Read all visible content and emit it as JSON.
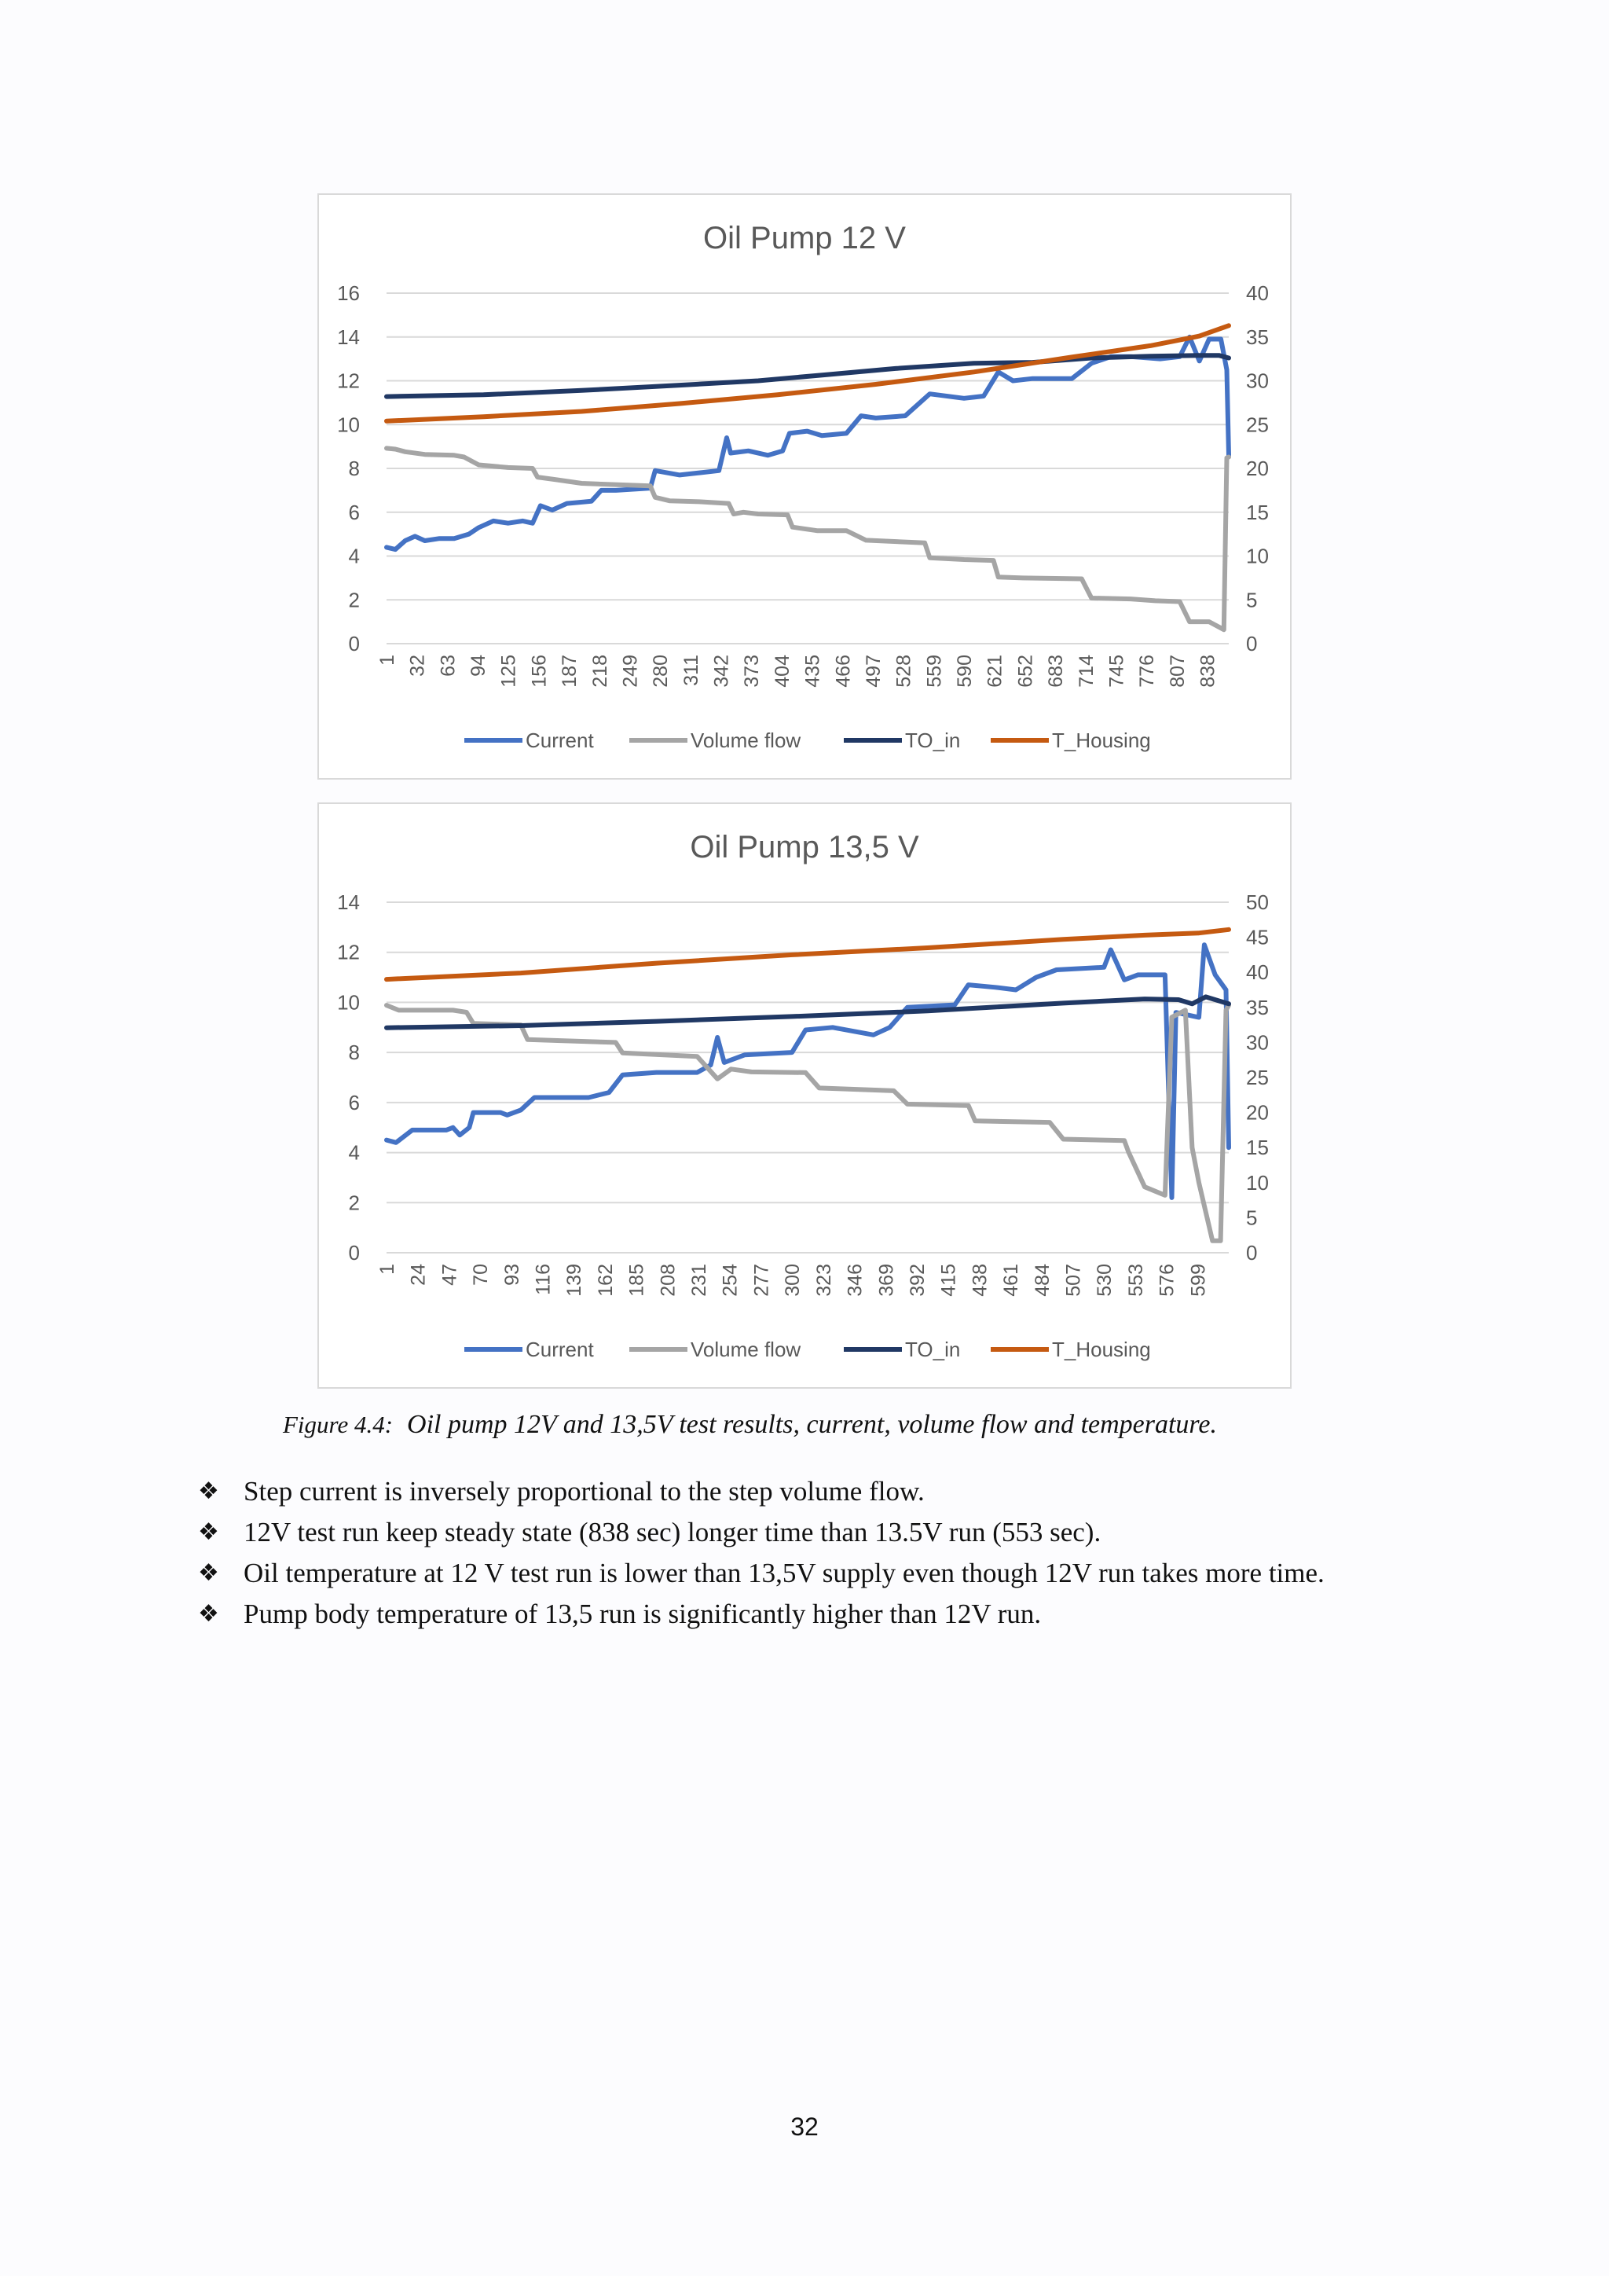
{
  "chart_data": [
    {
      "type": "line",
      "title": "Oil Pump 12 V",
      "x_ticks": [
        "1",
        "32",
        "63",
        "94",
        "125",
        "156",
        "187",
        "218",
        "249",
        "280",
        "311",
        "342",
        "373",
        "404",
        "435",
        "466",
        "497",
        "528",
        "559",
        "590",
        "621",
        "652",
        "683",
        "714",
        "745",
        "776",
        "807",
        "838"
      ],
      "xlim": [
        1,
        860
      ],
      "y_left": {
        "ticks": [
          "0",
          "2",
          "4",
          "6",
          "8",
          "10",
          "12",
          "14",
          "16"
        ],
        "ylim": [
          0,
          16
        ]
      },
      "y_right": {
        "ticks": [
          "0",
          "5",
          "10",
          "15",
          "20",
          "25",
          "30",
          "35",
          "40"
        ],
        "ylim": [
          0,
          40
        ]
      },
      "grid": true,
      "legend_position": "bottom",
      "series": [
        {
          "name": "Current",
          "color": "#4472c4",
          "axis": "left",
          "points": [
            [
              1,
              4.4
            ],
            [
              10,
              4.3
            ],
            [
              20,
              4.7
            ],
            [
              30,
              4.9
            ],
            [
              40,
              4.7
            ],
            [
              55,
              4.8
            ],
            [
              70,
              4.8
            ],
            [
              85,
              5.0
            ],
            [
              95,
              5.3
            ],
            [
              110,
              5.6
            ],
            [
              125,
              5.5
            ],
            [
              140,
              5.6
            ],
            [
              150,
              5.5
            ],
            [
              158,
              6.3
            ],
            [
              170,
              6.1
            ],
            [
              185,
              6.4
            ],
            [
              210,
              6.5
            ],
            [
              220,
              7.0
            ],
            [
              235,
              7.0
            ],
            [
              270,
              7.1
            ],
            [
              275,
              7.9
            ],
            [
              300,
              7.7
            ],
            [
              320,
              7.8
            ],
            [
              340,
              7.9
            ],
            [
              348,
              9.4
            ],
            [
              352,
              8.7
            ],
            [
              370,
              8.8
            ],
            [
              390,
              8.6
            ],
            [
              405,
              8.8
            ],
            [
              412,
              9.6
            ],
            [
              430,
              9.7
            ],
            [
              445,
              9.5
            ],
            [
              470,
              9.6
            ],
            [
              485,
              10.4
            ],
            [
              500,
              10.3
            ],
            [
              530,
              10.4
            ],
            [
              555,
              11.4
            ],
            [
              590,
              11.2
            ],
            [
              610,
              11.3
            ],
            [
              625,
              12.4
            ],
            [
              640,
              12.0
            ],
            [
              660,
              12.1
            ],
            [
              700,
              12.1
            ],
            [
              720,
              12.8
            ],
            [
              740,
              13.1
            ],
            [
              760,
              13.1
            ],
            [
              790,
              13.0
            ],
            [
              810,
              13.1
            ],
            [
              820,
              14.0
            ],
            [
              830,
              12.9
            ],
            [
              840,
              13.9
            ],
            [
              852,
              13.9
            ],
            [
              858,
              12.5
            ],
            [
              860,
              8.6
            ]
          ]
        },
        {
          "name": "Volume flow",
          "color": "#a5a5a5",
          "axis": "right",
          "points": [
            [
              1,
              22.3
            ],
            [
              10,
              22.2
            ],
            [
              20,
              21.9
            ],
            [
              40,
              21.6
            ],
            [
              70,
              21.5
            ],
            [
              80,
              21.3
            ],
            [
              95,
              20.4
            ],
            [
              125,
              20.1
            ],
            [
              150,
              20.0
            ],
            [
              155,
              19.0
            ],
            [
              175,
              18.7
            ],
            [
              200,
              18.3
            ],
            [
              270,
              18.0
            ],
            [
              275,
              16.7
            ],
            [
              290,
              16.3
            ],
            [
              320,
              16.2
            ],
            [
              350,
              16.0
            ],
            [
              355,
              14.8
            ],
            [
              365,
              15.0
            ],
            [
              380,
              14.8
            ],
            [
              410,
              14.7
            ],
            [
              415,
              13.3
            ],
            [
              440,
              12.9
            ],
            [
              470,
              12.9
            ],
            [
              490,
              11.8
            ],
            [
              510,
              11.7
            ],
            [
              550,
              11.5
            ],
            [
              555,
              9.8
            ],
            [
              590,
              9.6
            ],
            [
              620,
              9.5
            ],
            [
              625,
              7.6
            ],
            [
              650,
              7.5
            ],
            [
              710,
              7.4
            ],
            [
              720,
              5.2
            ],
            [
              760,
              5.1
            ],
            [
              785,
              4.9
            ],
            [
              810,
              4.8
            ],
            [
              820,
              2.5
            ],
            [
              840,
              2.5
            ],
            [
              855,
              1.6
            ],
            [
              858,
              21.2
            ],
            [
              860,
              21.3
            ]
          ]
        },
        {
          "name": "TO_in",
          "color": "#203864",
          "axis": "right",
          "points": [
            [
              1,
              28.2
            ],
            [
              100,
              28.4
            ],
            [
              200,
              28.9
            ],
            [
              300,
              29.5
            ],
            [
              380,
              30.0
            ],
            [
              450,
              30.7
            ],
            [
              520,
              31.4
            ],
            [
              600,
              32.0
            ],
            [
              660,
              32.1
            ],
            [
              720,
              32.6
            ],
            [
              780,
              32.8
            ],
            [
              830,
              32.9
            ],
            [
              850,
              32.9
            ],
            [
              860,
              32.6
            ]
          ]
        },
        {
          "name": "T_Housing",
          "color": "#c55a11",
          "axis": "right",
          "points": [
            [
              1,
              25.4
            ],
            [
              100,
              25.9
            ],
            [
              200,
              26.5
            ],
            [
              300,
              27.4
            ],
            [
              400,
              28.4
            ],
            [
              500,
              29.6
            ],
            [
              600,
              31.0
            ],
            [
              700,
              32.7
            ],
            [
              780,
              34.0
            ],
            [
              830,
              35.1
            ],
            [
              860,
              36.3
            ]
          ]
        }
      ]
    },
    {
      "type": "line",
      "title": "Oil Pump 13,5 V",
      "x_ticks": [
        "1",
        "24",
        "47",
        "70",
        "93",
        "116",
        "139",
        "162",
        "185",
        "208",
        "231",
        "254",
        "277",
        "300",
        "323",
        "346",
        "369",
        "392",
        "415",
        "438",
        "461",
        "484",
        "507",
        "530",
        "553",
        "576",
        "599"
      ],
      "xlim": [
        1,
        622
      ],
      "y_left": {
        "ticks": [
          "0",
          "2",
          "4",
          "6",
          "8",
          "10",
          "12",
          "14"
        ],
        "ylim": [
          0,
          14
        ]
      },
      "y_right": {
        "ticks": [
          "0",
          "5",
          "10",
          "15",
          "20",
          "25",
          "30",
          "35",
          "40",
          "45",
          "50"
        ],
        "ylim": [
          0,
          50
        ]
      },
      "grid": true,
      "legend_position": "bottom",
      "series": [
        {
          "name": "Current",
          "color": "#4472c4",
          "axis": "left",
          "points": [
            [
              1,
              4.5
            ],
            [
              8,
              4.4
            ],
            [
              20,
              4.9
            ],
            [
              45,
              4.9
            ],
            [
              50,
              5.0
            ],
            [
              55,
              4.7
            ],
            [
              62,
              5.0
            ],
            [
              65,
              5.6
            ],
            [
              85,
              5.6
            ],
            [
              90,
              5.5
            ],
            [
              100,
              5.7
            ],
            [
              110,
              6.2
            ],
            [
              150,
              6.2
            ],
            [
              165,
              6.4
            ],
            [
              175,
              7.1
            ],
            [
              200,
              7.2
            ],
            [
              220,
              7.2
            ],
            [
              230,
              7.2
            ],
            [
              240,
              7.5
            ],
            [
              245,
              8.6
            ],
            [
              250,
              7.6
            ],
            [
              265,
              7.9
            ],
            [
              300,
              8.0
            ],
            [
              310,
              8.9
            ],
            [
              330,
              9.0
            ],
            [
              360,
              8.7
            ],
            [
              372,
              9.0
            ],
            [
              385,
              9.8
            ],
            [
              420,
              9.9
            ],
            [
              430,
              10.7
            ],
            [
              450,
              10.6
            ],
            [
              465,
              10.5
            ],
            [
              480,
              11.0
            ],
            [
              495,
              11.3
            ],
            [
              530,
              11.4
            ],
            [
              535,
              12.1
            ],
            [
              545,
              10.9
            ],
            [
              555,
              11.1
            ],
            [
              575,
              11.1
            ],
            [
              580,
              2.2
            ],
            [
              583,
              9.6
            ],
            [
              600,
              9.4
            ],
            [
              604,
              12.3
            ],
            [
              612,
              11.1
            ],
            [
              620,
              10.5
            ],
            [
              622,
              4.2
            ]
          ]
        },
        {
          "name": "Volume flow",
          "color": "#a5a5a5",
          "axis": "right",
          "points": [
            [
              1,
              35.3
            ],
            [
              10,
              34.6
            ],
            [
              50,
              34.6
            ],
            [
              60,
              34.3
            ],
            [
              65,
              32.7
            ],
            [
              100,
              32.5
            ],
            [
              105,
              30.4
            ],
            [
              170,
              30.0
            ],
            [
              175,
              28.5
            ],
            [
              230,
              28.0
            ],
            [
              245,
              24.8
            ],
            [
              255,
              26.2
            ],
            [
              270,
              25.8
            ],
            [
              310,
              25.7
            ],
            [
              320,
              23.5
            ],
            [
              375,
              23.1
            ],
            [
              385,
              21.2
            ],
            [
              430,
              21.0
            ],
            [
              435,
              18.8
            ],
            [
              490,
              18.6
            ],
            [
              500,
              16.2
            ],
            [
              545,
              16.0
            ],
            [
              548,
              14.4
            ],
            [
              560,
              9.4
            ],
            [
              575,
              8.2
            ],
            [
              580,
              33.6
            ],
            [
              590,
              34.6
            ],
            [
              595,
              15.0
            ],
            [
              600,
              10.0
            ],
            [
              610,
              1.7
            ],
            [
              616,
              1.7
            ],
            [
              620,
              34.6
            ],
            [
              622,
              35.3
            ]
          ]
        },
        {
          "name": "TO_in",
          "color": "#203864",
          "axis": "right",
          "points": [
            [
              1,
              32.1
            ],
            [
              100,
              32.4
            ],
            [
              200,
              33.0
            ],
            [
              300,
              33.7
            ],
            [
              400,
              34.5
            ],
            [
              500,
              35.6
            ],
            [
              560,
              36.2
            ],
            [
              585,
              36.1
            ],
            [
              595,
              35.5
            ],
            [
              605,
              36.5
            ],
            [
              622,
              35.5
            ]
          ]
        },
        {
          "name": "T_Housing",
          "color": "#c55a11",
          "axis": "right",
          "points": [
            [
              1,
              39.0
            ],
            [
              100,
              39.9
            ],
            [
              200,
              41.3
            ],
            [
              300,
              42.5
            ],
            [
              400,
              43.5
            ],
            [
              500,
              44.7
            ],
            [
              560,
              45.3
            ],
            [
              600,
              45.6
            ],
            [
              622,
              46.1
            ]
          ]
        }
      ]
    }
  ],
  "caption": {
    "label": "Figure 4.4:",
    "text": "Oil pump 12V and 13,5V test results, current, volume flow and temperature."
  },
  "bullet_icon": "four-diamond-bullet-icon",
  "bullet_glyph": "❖",
  "bullets": [
    "Step current is inversely proportional to the step volume flow.",
    "12V test run keep steady state (838 sec) longer time than 13.5V run (553 sec).",
    "Oil temperature at 12 V test run is lower than 13,5V supply even though 12V run takes more time.",
    "Pump body temperature of 13,5 run is significantly higher than 12V run."
  ],
  "page_number": "32"
}
